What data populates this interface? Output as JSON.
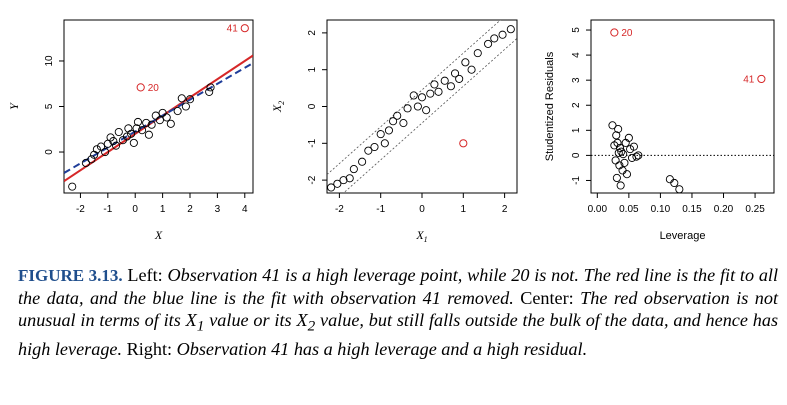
{
  "chart_data": [
    {
      "type": "scatter",
      "xlabel": "X",
      "ylabel": "Y",
      "xlim": [
        -2.6,
        4.3
      ],
      "ylim": [
        -4.5,
        14.5
      ],
      "xticks": [
        -2,
        -1,
        0,
        1,
        2,
        3,
        4
      ],
      "yticks": [
        0,
        5,
        10
      ],
      "points": [
        [
          -2.3,
          -3.8
        ],
        [
          -1.8,
          -1.2
        ],
        [
          -1.6,
          -0.8
        ],
        [
          -1.5,
          -0.3
        ],
        [
          -1.4,
          0.3
        ],
        [
          -1.25,
          0.6
        ],
        [
          -1.1,
          0.0
        ],
        [
          -1.0,
          0.9
        ],
        [
          -0.9,
          1.6
        ],
        [
          -0.8,
          1.2
        ],
        [
          -0.7,
          0.7
        ],
        [
          -0.6,
          2.2
        ],
        [
          -0.45,
          1.3
        ],
        [
          -0.3,
          1.7
        ],
        [
          -0.25,
          2.6
        ],
        [
          -0.15,
          2.0
        ],
        [
          -0.05,
          1.0
        ],
        [
          0.05,
          2.6
        ],
        [
          0.1,
          3.3
        ],
        [
          0.25,
          2.4
        ],
        [
          0.4,
          3.2
        ],
        [
          0.5,
          1.9
        ],
        [
          0.6,
          3.0
        ],
        [
          0.75,
          4.0
        ],
        [
          0.9,
          3.5
        ],
        [
          1.0,
          4.3
        ],
        [
          1.15,
          3.8
        ],
        [
          1.3,
          3.1
        ],
        [
          1.55,
          4.5
        ],
        [
          1.7,
          5.9
        ],
        [
          1.85,
          5.0
        ],
        [
          2.0,
          5.8
        ],
        [
          2.7,
          6.6
        ],
        [
          2.75,
          7.1
        ]
      ],
      "highlight": [
        {
          "label": "20",
          "x": 0.2,
          "y": 7.1
        },
        {
          "label": "41",
          "x": 4.0,
          "y": 13.6
        }
      ],
      "lines": [
        {
          "color": "#d62728",
          "style": "solid",
          "intercept": 2.0,
          "slope": 2.0
        },
        {
          "color": "#1f3d99",
          "style": "dashed",
          "intercept": 2.25,
          "slope": 1.75
        }
      ]
    },
    {
      "type": "scatter",
      "xlabel": "X1",
      "ylabel": "X2",
      "xlim": [
        -2.3,
        2.3
      ],
      "ylim": [
        -2.35,
        2.35
      ],
      "xticks": [
        -2,
        -1,
        0,
        1,
        2
      ],
      "yticks": [
        -2,
        -1,
        0,
        1,
        2
      ],
      "points": [
        [
          -2.2,
          -2.2
        ],
        [
          -2.05,
          -2.1
        ],
        [
          -1.9,
          -2.0
        ],
        [
          -1.75,
          -1.95
        ],
        [
          -1.65,
          -1.7
        ],
        [
          -1.45,
          -1.5
        ],
        [
          -1.3,
          -1.2
        ],
        [
          -1.15,
          -1.1
        ],
        [
          -1.0,
          -0.75
        ],
        [
          -0.9,
          -1.0
        ],
        [
          -0.8,
          -0.65
        ],
        [
          -0.7,
          -0.4
        ],
        [
          -0.6,
          -0.25
        ],
        [
          -0.45,
          -0.45
        ],
        [
          -0.35,
          -0.05
        ],
        [
          -0.2,
          0.3
        ],
        [
          -0.1,
          0.0
        ],
        [
          0.0,
          0.25
        ],
        [
          0.1,
          -0.1
        ],
        [
          0.2,
          0.35
        ],
        [
          0.3,
          0.6
        ],
        [
          0.4,
          0.4
        ],
        [
          0.55,
          0.7
        ],
        [
          0.7,
          0.55
        ],
        [
          0.8,
          0.9
        ],
        [
          0.9,
          0.75
        ],
        [
          1.05,
          1.2
        ],
        [
          1.2,
          1.0
        ],
        [
          1.35,
          1.45
        ],
        [
          1.6,
          1.7
        ],
        [
          1.75,
          1.85
        ],
        [
          1.95,
          1.95
        ],
        [
          2.15,
          2.1
        ]
      ],
      "highlight": [
        {
          "label": "",
          "x": 1.0,
          "y": -1.0
        }
      ]
    },
    {
      "type": "scatter",
      "xlabel": "Leverage",
      "ylabel": "Studentized Residuals",
      "xlim": [
        -0.01,
        0.28
      ],
      "ylim": [
        -1.5,
        5.4
      ],
      "xticks": [
        0.0,
        0.05,
        0.1,
        0.15,
        0.2,
        0.25
      ],
      "xticklabels": [
        "0.00",
        "0.05",
        "0.10",
        "0.15",
        "0.20",
        "0.25"
      ],
      "yticks": [
        -1,
        0,
        1,
        2,
        3,
        4,
        5
      ],
      "hline": 0,
      "points": [
        [
          0.024,
          1.2
        ],
        [
          0.027,
          0.4
        ],
        [
          0.029,
          -0.2
        ],
        [
          0.03,
          0.8
        ],
        [
          0.031,
          -0.9
        ],
        [
          0.032,
          0.5
        ],
        [
          0.033,
          1.05
        ],
        [
          0.034,
          0.1
        ],
        [
          0.035,
          -0.4
        ],
        [
          0.036,
          0.3
        ],
        [
          0.037,
          -1.2
        ],
        [
          0.038,
          0.15
        ],
        [
          0.04,
          -0.6
        ],
        [
          0.041,
          0.05
        ],
        [
          0.043,
          -0.3
        ],
        [
          0.045,
          0.5
        ],
        [
          0.047,
          -0.75
        ],
        [
          0.05,
          0.7
        ],
        [
          0.052,
          0.25
        ],
        [
          0.055,
          -0.1
        ],
        [
          0.058,
          0.35
        ],
        [
          0.062,
          -0.05
        ],
        [
          0.065,
          0.0
        ],
        [
          0.115,
          -0.95
        ],
        [
          0.122,
          -1.1
        ],
        [
          0.13,
          -1.35
        ]
      ],
      "highlight": [
        {
          "label": "20",
          "x": 0.027,
          "y": 4.9
        },
        {
          "label": "41",
          "x": 0.26,
          "y": 3.05
        }
      ]
    }
  ],
  "caption": {
    "label": "FIGURE 3.13.",
    "left": "Left:",
    "text1": "Observation 41 is a high leverage point, while 20 is not. The red line is the fit to all the data, and the blue line is the fit with observation 41 removed.",
    "center": "Center:",
    "text2": "The red observation is not unusual in terms of its",
    "sym1": "X",
    "sub1": "1",
    "text3": "value or its",
    "sym2": "X",
    "sub2": "2",
    "text4": "value, but still falls outside the bulk of the data, and hence has high leverage.",
    "right": "Right:",
    "text5": "Observation 41 has a high leverage and a high residual."
  }
}
